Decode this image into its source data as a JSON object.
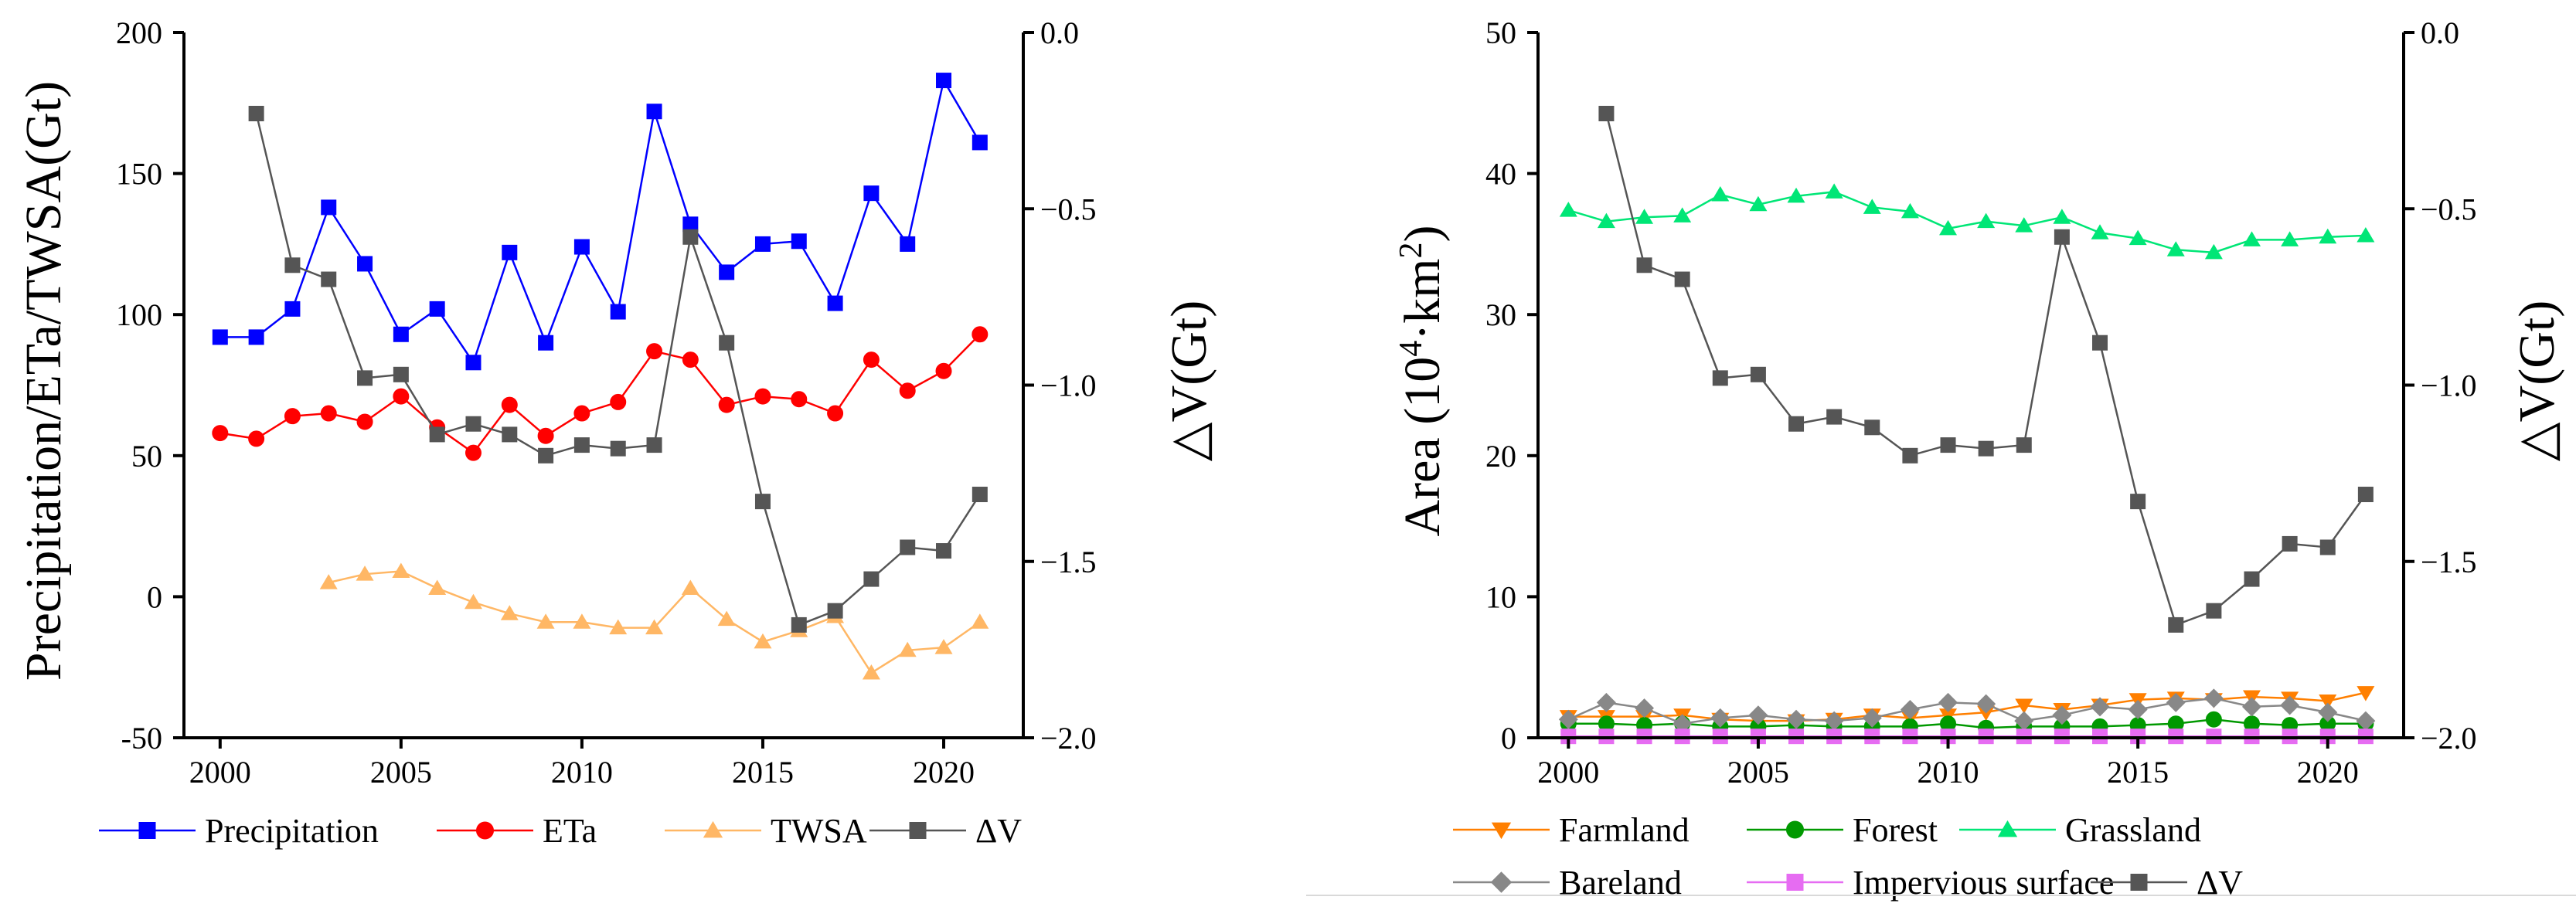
{
  "chart_data": [
    {
      "id": "left",
      "type": "line",
      "x": [
        2000,
        2001,
        2002,
        2003,
        2004,
        2005,
        2006,
        2007,
        2008,
        2009,
        2010,
        2011,
        2012,
        2013,
        2014,
        2015,
        2016,
        2017,
        2018,
        2019,
        2020,
        2021
      ],
      "xlim": [
        1999.0,
        2022.2
      ],
      "xticks": [
        2000,
        2005,
        2010,
        2015,
        2020
      ],
      "ylabel": "Precipitation/ETa/TWSA(Gt)",
      "ylim": [
        -50,
        200
      ],
      "yticks": [
        -50,
        0,
        50,
        100,
        150,
        200
      ],
      "y2label": "△V(Gt)",
      "y2lim": [
        -2.0,
        0.0
      ],
      "y2ticks": [
        "-2.0",
        "-1.5",
        "-1.0",
        "-0.5",
        "0.0"
      ],
      "series": [
        {
          "name": "Precipitation",
          "axis": "left",
          "marker": "square",
          "color": "#0000FF",
          "values": [
            92,
            92,
            102,
            138,
            118,
            93,
            102,
            83,
            122,
            90,
            124,
            101,
            172,
            132,
            115,
            125,
            126,
            104,
            143,
            125,
            183,
            161
          ]
        },
        {
          "name": "ETa",
          "axis": "left",
          "marker": "circle",
          "color": "#FF0000",
          "values": [
            58,
            56,
            64,
            65,
            62,
            71,
            60,
            51,
            68,
            57,
            65,
            69,
            87,
            84,
            68,
            71,
            70,
            65,
            84,
            73,
            80,
            93
          ]
        },
        {
          "name": "TWSA",
          "axis": "left",
          "marker": "triangle",
          "color": "#FFB765",
          "values": [
            null,
            null,
            null,
            5,
            8,
            9,
            3,
            -2,
            -6,
            -9,
            -9,
            -11,
            -11,
            3,
            -8,
            -16,
            -12,
            -7,
            -27,
            -19,
            -18,
            -9
          ]
        },
        {
          "name": "ΔV",
          "axis": "right",
          "marker": "square",
          "color": "#555555",
          "values": [
            null,
            -0.23,
            -0.66,
            -0.7,
            -0.98,
            -0.97,
            -1.14,
            -1.11,
            -1.14,
            -1.2,
            -1.17,
            -1.18,
            -1.17,
            -0.58,
            -0.88,
            -1.33,
            -1.68,
            -1.64,
            -1.55,
            -1.46,
            -1.47,
            -1.31
          ]
        }
      ],
      "legend": {
        "position": "bottom",
        "labels": [
          "Precipitation",
          "ETa",
          "TWSA",
          "ΔV"
        ]
      }
    },
    {
      "id": "right",
      "type": "line",
      "x": [
        2000,
        2001,
        2002,
        2003,
        2004,
        2005,
        2006,
        2007,
        2008,
        2009,
        2010,
        2011,
        2012,
        2013,
        2014,
        2015,
        2016,
        2017,
        2018,
        2019,
        2020,
        2021
      ],
      "xlim": [
        1999.2,
        2022.0
      ],
      "xticks": [
        2000,
        2005,
        2010,
        2015,
        2020
      ],
      "ylabel": "Area (10",
      "ylabel_sup1": "4",
      "ylabel_mid": "·km",
      "ylabel_sup2": "2",
      "ylabel_end": ")",
      "ylim": [
        0,
        50
      ],
      "yticks": [
        0,
        10,
        20,
        30,
        40,
        50
      ],
      "y2label": "△V(Gt)",
      "y2lim": [
        -2.0,
        0.0
      ],
      "y2ticks": [
        "-2.0",
        "-1.5",
        "-1.0",
        "-0.5",
        "0.0"
      ],
      "series": [
        {
          "name": "Farmland",
          "axis": "left",
          "marker": "triangle-down",
          "color": "#FF7F00",
          "values": [
            1.5,
            1.5,
            1.5,
            1.6,
            1.3,
            1.2,
            1.2,
            1.3,
            1.6,
            1.4,
            1.6,
            1.8,
            2.3,
            2.0,
            2.3,
            2.7,
            2.8,
            2.7,
            2.9,
            2.8,
            2.6,
            3.2
          ]
        },
        {
          "name": "Forest",
          "axis": "left",
          "marker": "circle",
          "color": "#009900",
          "values": [
            1.0,
            1.0,
            0.9,
            1.0,
            0.8,
            0.8,
            0.9,
            0.8,
            0.8,
            0.8,
            1.0,
            0.7,
            0.8,
            0.8,
            0.8,
            0.9,
            1.0,
            1.3,
            1.0,
            0.9,
            1.0,
            1.0
          ]
        },
        {
          "name": "Grassland",
          "axis": "left",
          "marker": "triangle",
          "color": "#00E676",
          "values": [
            37.4,
            36.6,
            36.9,
            37.0,
            38.5,
            37.8,
            38.4,
            38.7,
            37.6,
            37.3,
            36.1,
            36.6,
            36.3,
            36.9,
            35.8,
            35.4,
            34.6,
            34.4,
            35.3,
            35.3,
            35.5,
            35.6
          ]
        },
        {
          "name": "Bareland",
          "axis": "left",
          "marker": "diamond",
          "color": "#888888",
          "values": [
            1.3,
            2.5,
            2.1,
            1.0,
            1.4,
            1.6,
            1.3,
            1.2,
            1.4,
            2.0,
            2.5,
            2.4,
            1.2,
            1.6,
            2.2,
            2.0,
            2.5,
            2.8,
            2.2,
            2.3,
            1.8,
            1.2
          ]
        },
        {
          "name": "Impervious surface",
          "axis": "left",
          "marker": "square",
          "color": "#E66CF2",
          "values": [
            0.1,
            0.1,
            0.1,
            0.1,
            0.1,
            0.1,
            0.1,
            0.1,
            0.1,
            0.1,
            0.1,
            0.1,
            0.1,
            0.1,
            0.1,
            0.1,
            0.1,
            0.1,
            0.1,
            0.1,
            0.1,
            0.1
          ]
        },
        {
          "name": "ΔV",
          "axis": "right",
          "marker": "square",
          "color": "#555555",
          "values": [
            null,
            -0.23,
            -0.66,
            -0.7,
            -0.98,
            -0.97,
            -1.11,
            -1.09,
            -1.12,
            -1.2,
            -1.17,
            -1.18,
            -1.17,
            -0.58,
            -0.88,
            -1.33,
            -1.68,
            -1.64,
            -1.55,
            -1.45,
            -1.46,
            -1.31
          ]
        }
      ],
      "legend": {
        "position": "bottom",
        "labels": [
          "Farmland",
          "Forest",
          "Grassland",
          "Bareland",
          "Impervious surface",
          "ΔV"
        ]
      }
    }
  ]
}
